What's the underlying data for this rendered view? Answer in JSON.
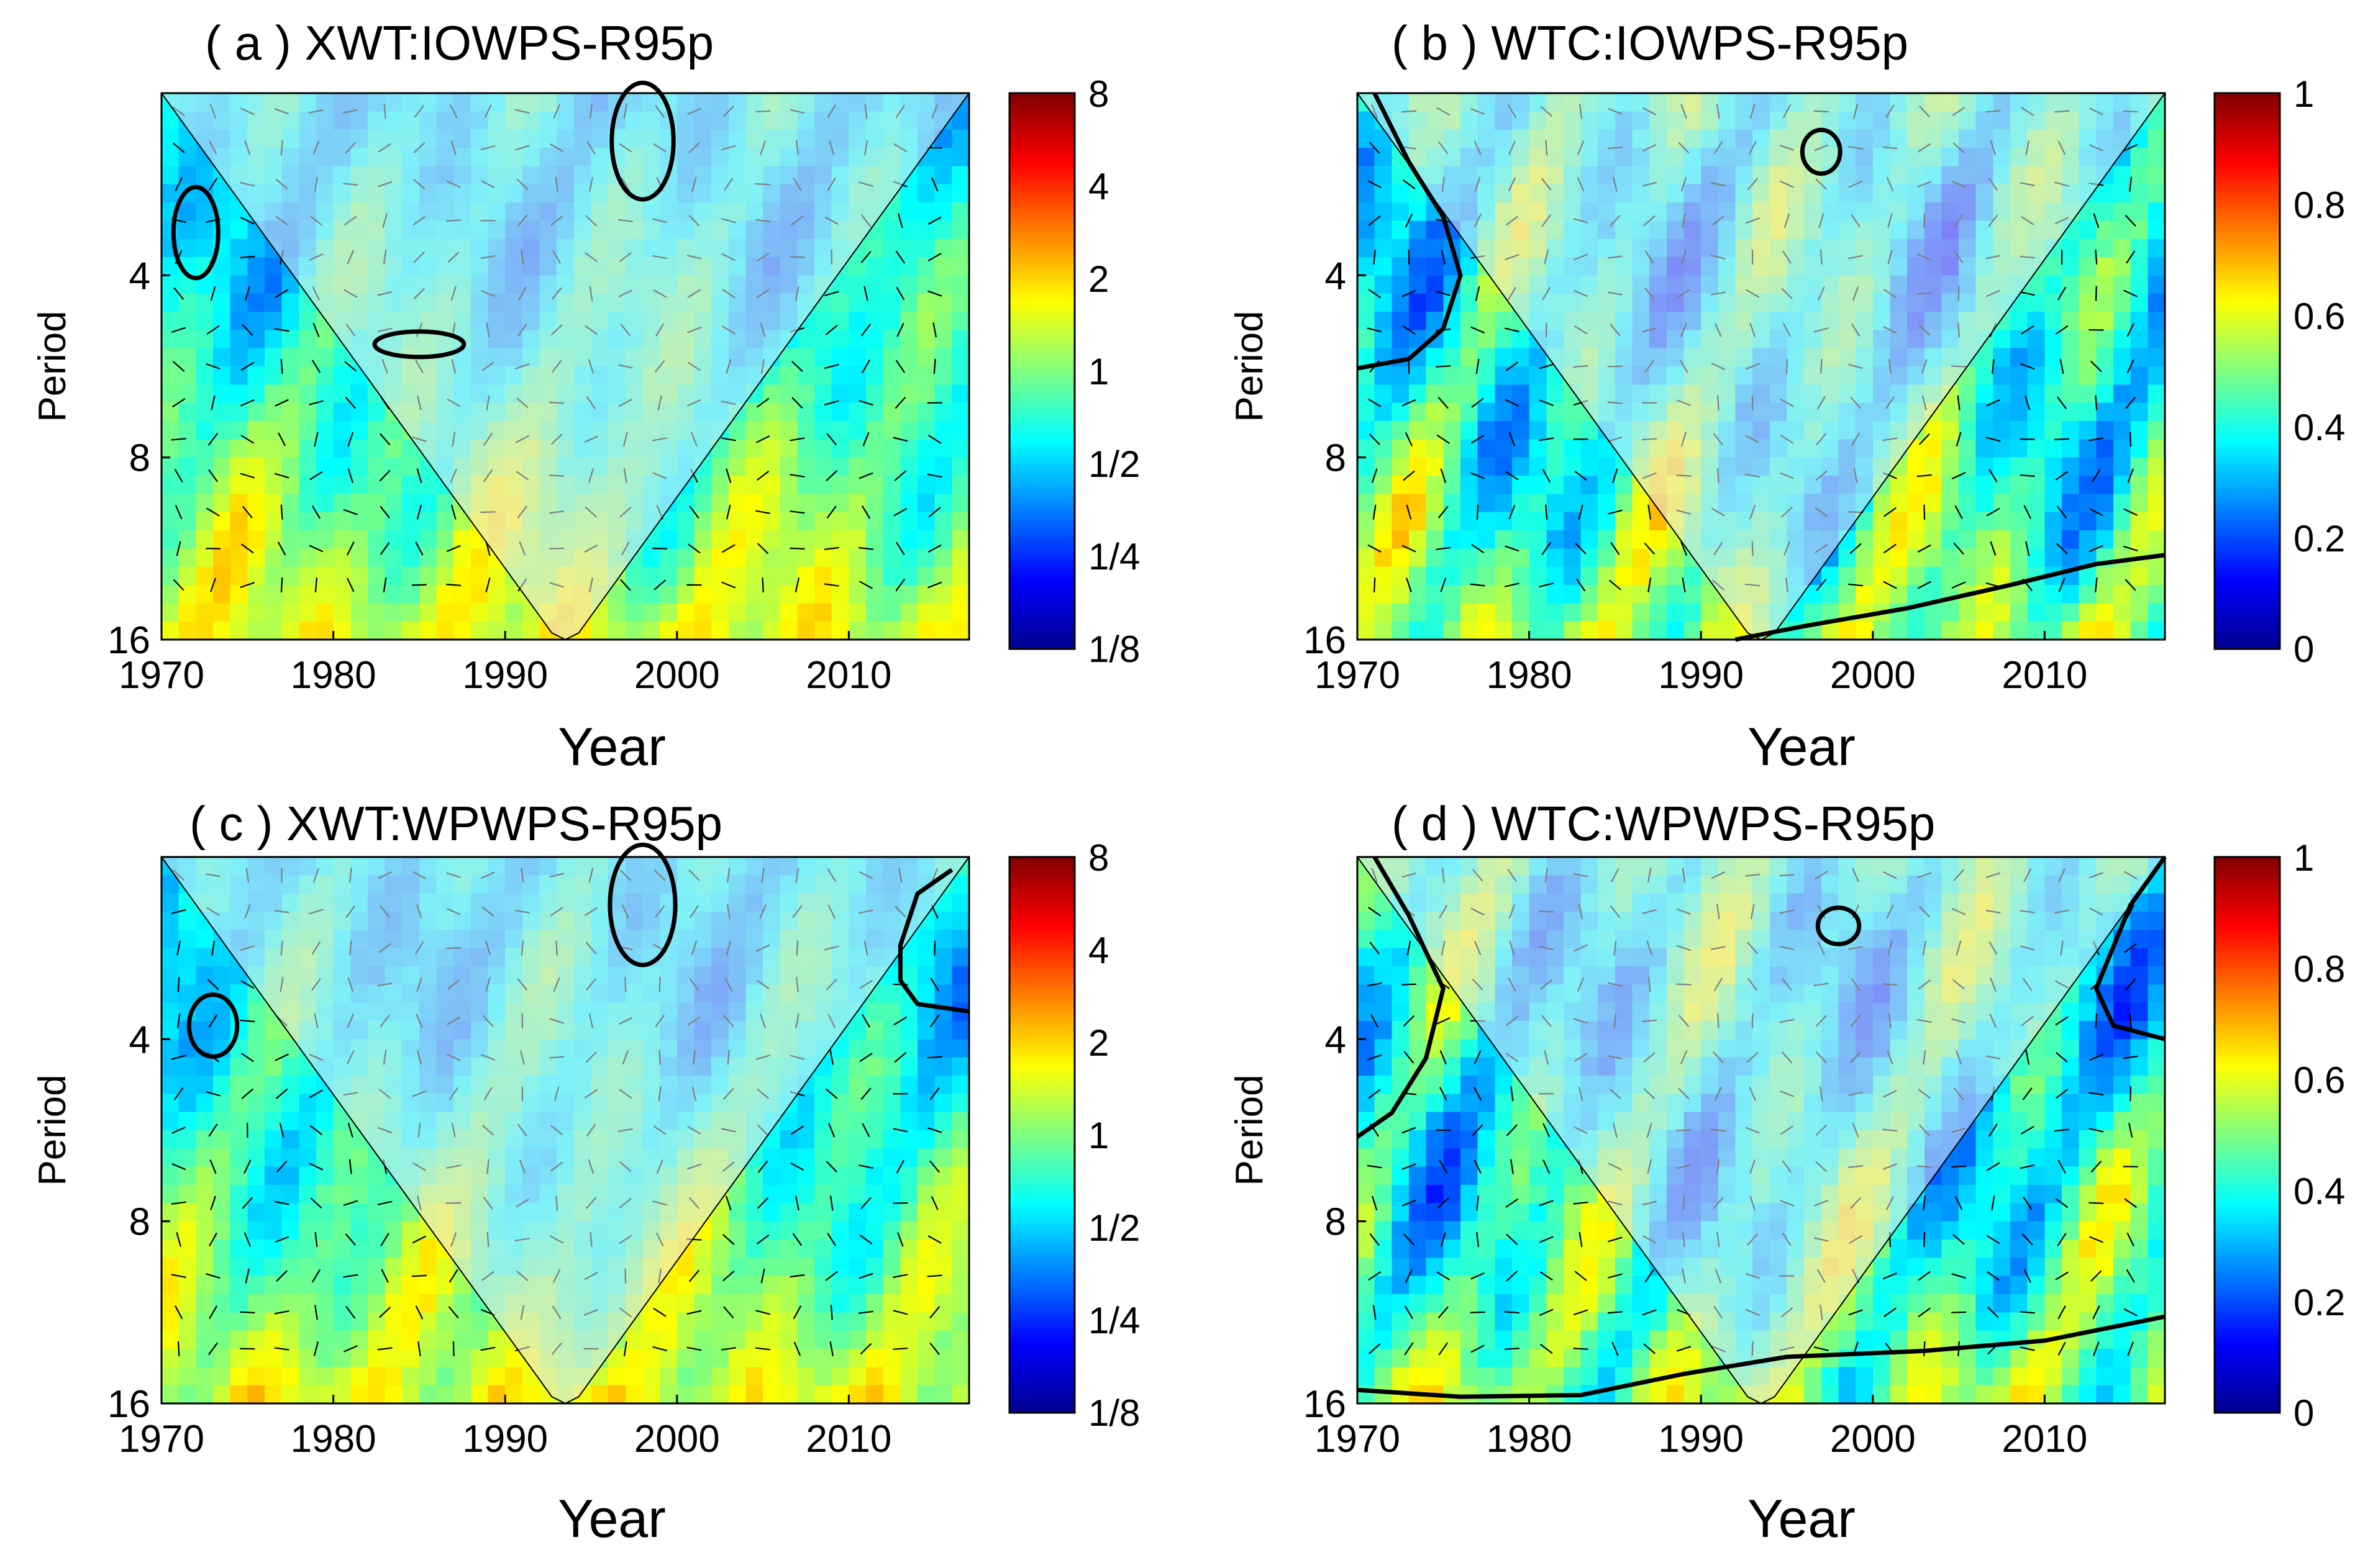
{
  "chart_data": [
    {
      "id": "a",
      "type": "heatmap",
      "title": "( a ) XWT:IOWPS-R95p",
      "xlabel": "Year",
      "ylabel": "Period",
      "x_ticks": [
        "1970",
        "1980",
        "1990",
        "2000",
        "2010"
      ],
      "y_ticks": [
        "4",
        "8",
        "16"
      ],
      "colorbar_ticks": [
        "8",
        "4",
        "2",
        "1",
        "1/2",
        "1/4",
        "1/8"
      ],
      "colorbar_range": [
        "1/8",
        "8"
      ],
      "xlim": [
        1970,
        2017
      ],
      "ylim_period": [
        2,
        16
      ],
      "coi_min_year": 1993,
      "significance_contours": [
        {
          "center_year": 1972,
          "center_period": 3.4,
          "year_halfwidth": 1.3,
          "log2_period_halfheight": 0.25
        },
        {
          "center_year": 1985,
          "center_period": 5.2,
          "year_halfwidth": 2.6,
          "log2_period_halfheight": 0.07
        },
        {
          "center_year": 1998,
          "center_period": 2.4,
          "year_halfwidth": 1.8,
          "log2_period_halfheight": 0.32
        }
      ],
      "significance_curves": []
    },
    {
      "id": "b",
      "type": "heatmap",
      "title": "( b ) WTC:IOWPS-R95p",
      "xlabel": "Year",
      "ylabel": "Period",
      "x_ticks": [
        "1970",
        "1980",
        "1990",
        "2000",
        "2010"
      ],
      "y_ticks": [
        "4",
        "8",
        "16"
      ],
      "colorbar_ticks": [
        "1",
        "0.8",
        "0.6",
        "0.4",
        "0.2",
        "0"
      ],
      "colorbar_range": [
        0,
        1
      ],
      "xlim": [
        1970,
        2017
      ],
      "ylim_period": [
        2,
        16
      ],
      "coi_min_year": 1993,
      "significance_contours": [
        {
          "center_year": 1997,
          "center_period": 2.5,
          "year_halfwidth": 1.1,
          "log2_period_halfheight": 0.12
        }
      ],
      "significance_curves": [
        [
          [
            1971,
            2.0
          ],
          [
            1973,
            2.6
          ],
          [
            1975,
            3.2
          ],
          [
            1976,
            4.0
          ],
          [
            1975,
            4.9
          ],
          [
            1973,
            5.5
          ],
          [
            1970,
            5.7
          ]
        ],
        [
          [
            1992,
            16.0
          ],
          [
            1996,
            15.2
          ],
          [
            2002,
            14.2
          ],
          [
            2008,
            13.0
          ],
          [
            2013,
            12.0
          ],
          [
            2017,
            11.6
          ]
        ]
      ]
    },
    {
      "id": "c",
      "type": "heatmap",
      "title": "( c ) XWT:WPWPS-R95p",
      "xlabel": "Year",
      "ylabel": "Period",
      "x_ticks": [
        "1970",
        "1980",
        "1990",
        "2000",
        "2010"
      ],
      "y_ticks": [
        "4",
        "8",
        "16"
      ],
      "colorbar_ticks": [
        "8",
        "4",
        "2",
        "1",
        "1/2",
        "1/4",
        "1/8"
      ],
      "colorbar_range": [
        "1/8",
        "8"
      ],
      "xlim": [
        1970,
        2017
      ],
      "ylim_period": [
        2,
        16
      ],
      "coi_min_year": 1993,
      "significance_contours": [
        {
          "center_year": 1973,
          "center_period": 3.8,
          "year_halfwidth": 1.4,
          "log2_period_halfheight": 0.17
        },
        {
          "center_year": 1998,
          "center_period": 2.4,
          "year_halfwidth": 1.9,
          "log2_period_halfheight": 0.33
        }
      ],
      "significance_curves": [
        [
          [
            2016,
            2.1
          ],
          [
            2014,
            2.3
          ],
          [
            2013,
            2.8
          ],
          [
            2013,
            3.2
          ],
          [
            2014,
            3.5
          ],
          [
            2017,
            3.6
          ]
        ]
      ]
    },
    {
      "id": "d",
      "type": "heatmap",
      "title": "( d ) WTC:WPWPS-R95p",
      "xlabel": "Year",
      "ylabel": "Period",
      "x_ticks": [
        "1970",
        "1980",
        "1990",
        "2000",
        "2010"
      ],
      "y_ticks": [
        "4",
        "8",
        "16"
      ],
      "colorbar_ticks": [
        "1",
        "0.8",
        "0.6",
        "0.4",
        "0.2",
        "0"
      ],
      "colorbar_range": [
        0,
        1
      ],
      "xlim": [
        1970,
        2017
      ],
      "ylim_period": [
        2,
        16
      ],
      "coi_min_year": 1993,
      "significance_contours": [
        {
          "center_year": 1998,
          "center_period": 2.6,
          "year_halfwidth": 1.2,
          "log2_period_halfheight": 0.1
        }
      ],
      "significance_curves": [
        [
          [
            1971,
            2.0
          ],
          [
            1973,
            2.5
          ],
          [
            1975,
            3.3
          ],
          [
            1974,
            4.3
          ],
          [
            1972,
            5.3
          ],
          [
            1970,
            5.8
          ]
        ],
        [
          [
            2017,
            2.0
          ],
          [
            2015,
            2.4
          ],
          [
            2013,
            3.3
          ],
          [
            2014,
            3.8
          ],
          [
            2017,
            4.0
          ]
        ],
        [
          [
            1970,
            15.2
          ],
          [
            1976,
            15.6
          ],
          [
            1983,
            15.5
          ],
          [
            1989,
            14.3
          ],
          [
            1995,
            13.4
          ],
          [
            2003,
            13.1
          ],
          [
            2010,
            12.6
          ],
          [
            2017,
            11.5
          ]
        ]
      ]
    }
  ],
  "colors": {
    "coi_overlay": "#e6e6f2",
    "contour": "#000000",
    "colormap": [
      "#00008f",
      "#0000ff",
      "#00ffff",
      "#ffff00",
      "#ff7f00",
      "#ff0000",
      "#800000"
    ]
  }
}
